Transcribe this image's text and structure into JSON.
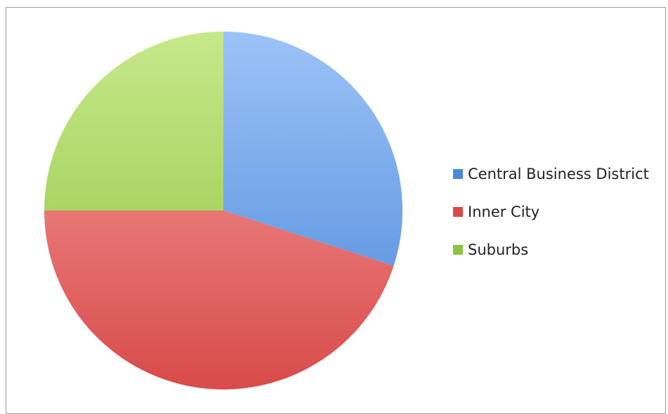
{
  "chart_data": {
    "type": "pie",
    "title": "",
    "categories": [
      "Central Business District",
      "Inner City",
      "Suburbs"
    ],
    "values": [
      30,
      45,
      25
    ],
    "unit": "%",
    "start_angle": "12 o'clock, clockwise",
    "legend_position": "right",
    "colors": {
      "Central Business District": {
        "light": "#9cc3f7",
        "dark": "#4a87d9"
      },
      "Inner City": {
        "light": "#f7a4a3",
        "dark": "#d84b4a"
      },
      "Suburbs": {
        "light": "#c6e88a",
        "dark": "#8cc43e"
      }
    }
  }
}
